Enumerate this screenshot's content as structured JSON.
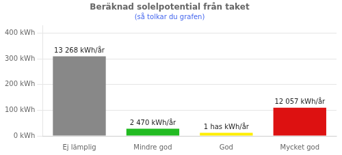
{
  "chart_data": {
    "type": "bar",
    "title": "Beräknad solelpotential från taket",
    "subtitle": "(så tolkar du grafen)",
    "categories": [
      "Ej lämplig",
      "Mindre god",
      "God",
      "Mycket god"
    ],
    "values": [
      310,
      28,
      12,
      110
    ],
    "colors": [
      "#888888",
      "#22bb22",
      "#ffee00",
      "#dd1111"
    ],
    "ylim": [
      0,
      430
    ],
    "yticks": [
      {
        "value": 0,
        "label": "0 kWh"
      },
      {
        "value": 100,
        "label": "100 kWh"
      },
      {
        "value": 200,
        "label": "200 kWh"
      },
      {
        "value": 300,
        "label": "300 kWh"
      },
      {
        "value": 400,
        "label": "400 kWh"
      }
    ],
    "grid": true,
    "annotations": [
      {
        "text": "13 268 kWh/år",
        "x": "Ej lämplig",
        "y": 319
      },
      {
        "text": "2 470 kWh/år",
        "x": "Mindre god",
        "y": 37
      },
      {
        "text": "1 has kWh/år",
        "x": "God",
        "y": 21
      },
      {
        "text": "12 057 kWh/år",
        "x": "Mycket god",
        "y": 119
      }
    ]
  }
}
